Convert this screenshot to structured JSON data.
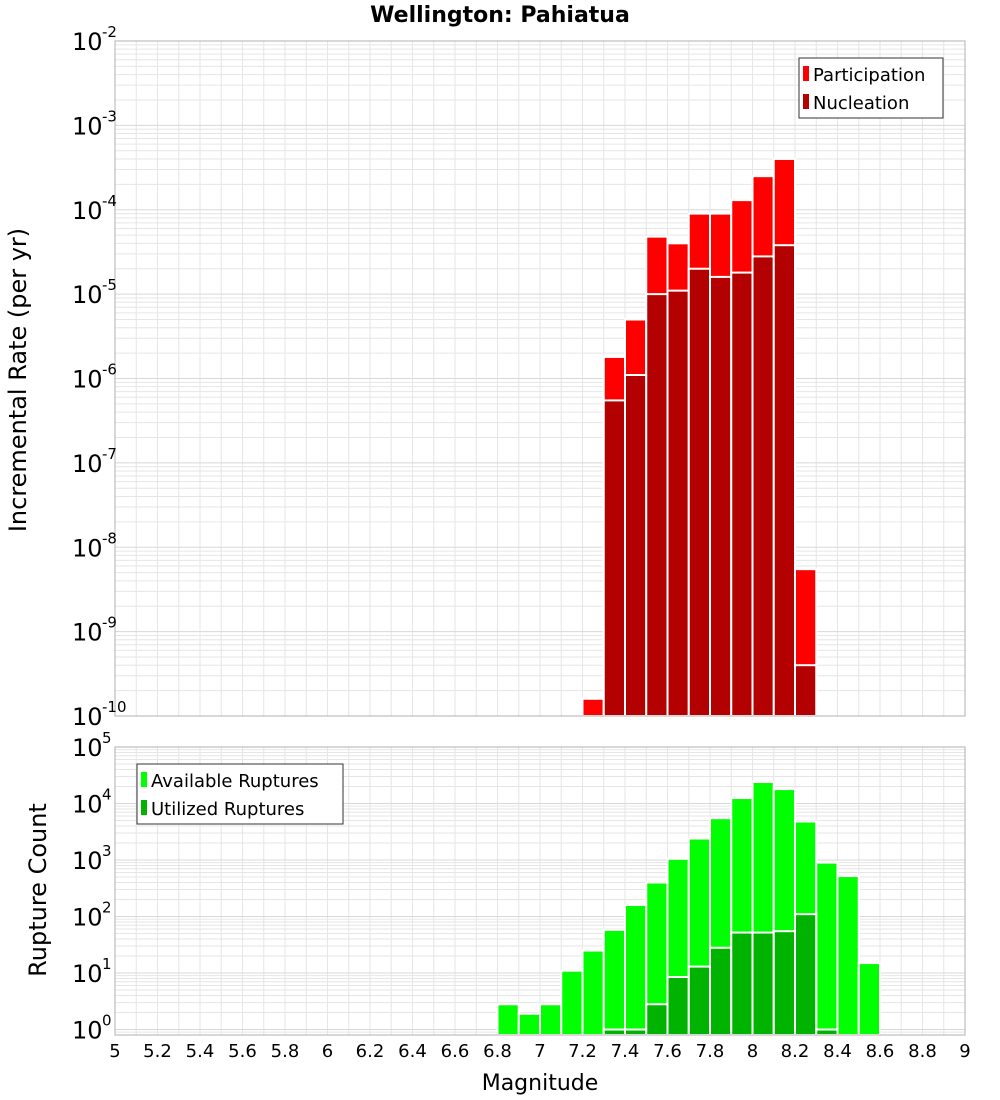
{
  "title": "Wellington: Pahiatua",
  "colors": {
    "participation": "#ff0000",
    "nucleation": "#b30000",
    "available": "#00ff00",
    "utilized": "#00b300",
    "grid": "#e6e6e6",
    "frame": "#b0b0b0"
  },
  "chart_data": [
    {
      "type": "bar",
      "subtype": "overlaid-log-bar",
      "ylabel": "Incremental Rate (per yr)",
      "xlim": [
        5,
        9
      ],
      "ylim": [
        1e-10,
        0.01
      ],
      "y_log": true,
      "grid": true,
      "legend_position": "top-right",
      "bin_width": 0.1,
      "series": [
        {
          "name": "Participation",
          "color_key": "participation",
          "points": [
            {
              "x": 7.25,
              "y": 1.6e-10
            },
            {
              "x": 7.35,
              "y": 1.8e-06
            },
            {
              "x": 7.45,
              "y": 5e-06
            },
            {
              "x": 7.55,
              "y": 4.8e-05
            },
            {
              "x": 7.65,
              "y": 4e-05
            },
            {
              "x": 7.75,
              "y": 9e-05
            },
            {
              "x": 7.85,
              "y": 9e-05
            },
            {
              "x": 7.95,
              "y": 0.00013
            },
            {
              "x": 8.05,
              "y": 0.00025
            },
            {
              "x": 8.15,
              "y": 0.0004
            },
            {
              "x": 8.25,
              "y": 5.5e-09
            }
          ]
        },
        {
          "name": "Nucleation",
          "color_key": "nucleation",
          "points": [
            {
              "x": 7.35,
              "y": 5.5e-07
            },
            {
              "x": 7.45,
              "y": 1.1e-06
            },
            {
              "x": 7.55,
              "y": 1e-05
            },
            {
              "x": 7.65,
              "y": 1.1e-05
            },
            {
              "x": 7.75,
              "y": 2e-05
            },
            {
              "x": 7.85,
              "y": 1.6e-05
            },
            {
              "x": 7.95,
              "y": 1.8e-05
            },
            {
              "x": 8.05,
              "y": 2.8e-05
            },
            {
              "x": 8.15,
              "y": 3.8e-05
            },
            {
              "x": 8.25,
              "y": 4e-10
            }
          ]
        }
      ]
    },
    {
      "type": "bar",
      "subtype": "overlaid-log-bar",
      "xlabel": "Magnitude",
      "ylabel": "Rupture Count",
      "xlim": [
        5,
        9
      ],
      "ylim": [
        0.8,
        100000.0
      ],
      "y_log": true,
      "grid": true,
      "legend_position": "top-left",
      "bin_width": 0.1,
      "x_ticks": [
        "5",
        "5.2",
        "5.4",
        "5.6",
        "5.8",
        "6",
        "6.2",
        "6.4",
        "6.6",
        "6.8",
        "7",
        "7.2",
        "7.4",
        "7.6",
        "7.8",
        "8",
        "8.2",
        "8.4",
        "8.6",
        "8.8",
        "9"
      ],
      "series": [
        {
          "name": "Available Ruptures",
          "color_key": "available",
          "points": [
            {
              "x": 6.85,
              "y": 2.8
            },
            {
              "x": 6.95,
              "y": 1.9
            },
            {
              "x": 7.05,
              "y": 2.8
            },
            {
              "x": 7.15,
              "y": 11
            },
            {
              "x": 7.25,
              "y": 25
            },
            {
              "x": 7.35,
              "y": 58
            },
            {
              "x": 7.45,
              "y": 160
            },
            {
              "x": 7.55,
              "y": 400
            },
            {
              "x": 7.65,
              "y": 1050
            },
            {
              "x": 7.75,
              "y": 2400
            },
            {
              "x": 7.85,
              "y": 5500
            },
            {
              "x": 7.95,
              "y": 12500
            },
            {
              "x": 8.05,
              "y": 24000
            },
            {
              "x": 8.15,
              "y": 18000
            },
            {
              "x": 8.25,
              "y": 4800
            },
            {
              "x": 8.35,
              "y": 900
            },
            {
              "x": 8.45,
              "y": 520
            },
            {
              "x": 8.55,
              "y": 15
            }
          ]
        },
        {
          "name": "Utilized Ruptures",
          "color_key": "utilized",
          "points": [
            {
              "x": 7.35,
              "y": 1
            },
            {
              "x": 7.45,
              "y": 1
            },
            {
              "x": 7.55,
              "y": 2.8
            },
            {
              "x": 7.65,
              "y": 8.5
            },
            {
              "x": 7.75,
              "y": 13
            },
            {
              "x": 7.85,
              "y": 28
            },
            {
              "x": 7.95,
              "y": 52
            },
            {
              "x": 8.05,
              "y": 52
            },
            {
              "x": 8.15,
              "y": 55
            },
            {
              "x": 8.25,
              "y": 110
            },
            {
              "x": 8.35,
              "y": 1
            }
          ]
        }
      ]
    }
  ]
}
